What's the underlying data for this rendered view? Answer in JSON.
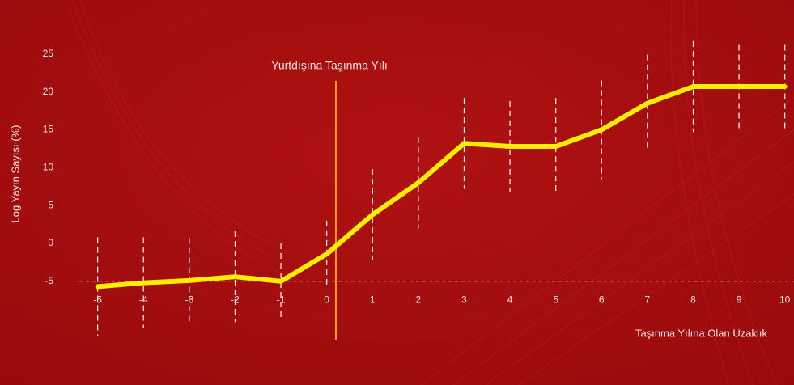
{
  "chart_data": {
    "type": "line",
    "annotation": "Yurtdışına Taşınma Yılı",
    "annotation_x": 0.2,
    "reference_y": -5,
    "x_label": "Taşınma Yılına Olan Uzaklık",
    "y_label": "Log Yayın Sayısı (%)",
    "x": [
      -5,
      -4,
      -3,
      -2,
      -1,
      0,
      1,
      2,
      3,
      4,
      5,
      6,
      7,
      8,
      9,
      10
    ],
    "series": [
      {
        "color": "#ffee00",
        "values": [
          -5.7,
          -5.2,
          -4.9,
          -4.4,
          -5.0,
          -1.4,
          3.8,
          8.0,
          13.2,
          12.8,
          12.8,
          15.0,
          18.5,
          20.7,
          20.7,
          20.7
        ],
        "errors": [
          6.5,
          6.0,
          5.6,
          6.0,
          5.0,
          4.4,
          6.0,
          6.0,
          6.0,
          6.0,
          6.4,
          6.5,
          6.4,
          6.0,
          5.5,
          5.5
        ]
      }
    ],
    "xlim": [
      -5.4,
      10.2
    ],
    "xticks": [
      -5,
      -4,
      -3,
      -2,
      -1,
      0,
      1,
      2,
      3,
      4,
      5,
      6,
      7,
      8,
      9,
      10
    ],
    "ylim": [
      -15,
      30
    ],
    "yticks": [
      -5,
      0,
      5,
      10,
      15,
      20,
      25
    ]
  }
}
